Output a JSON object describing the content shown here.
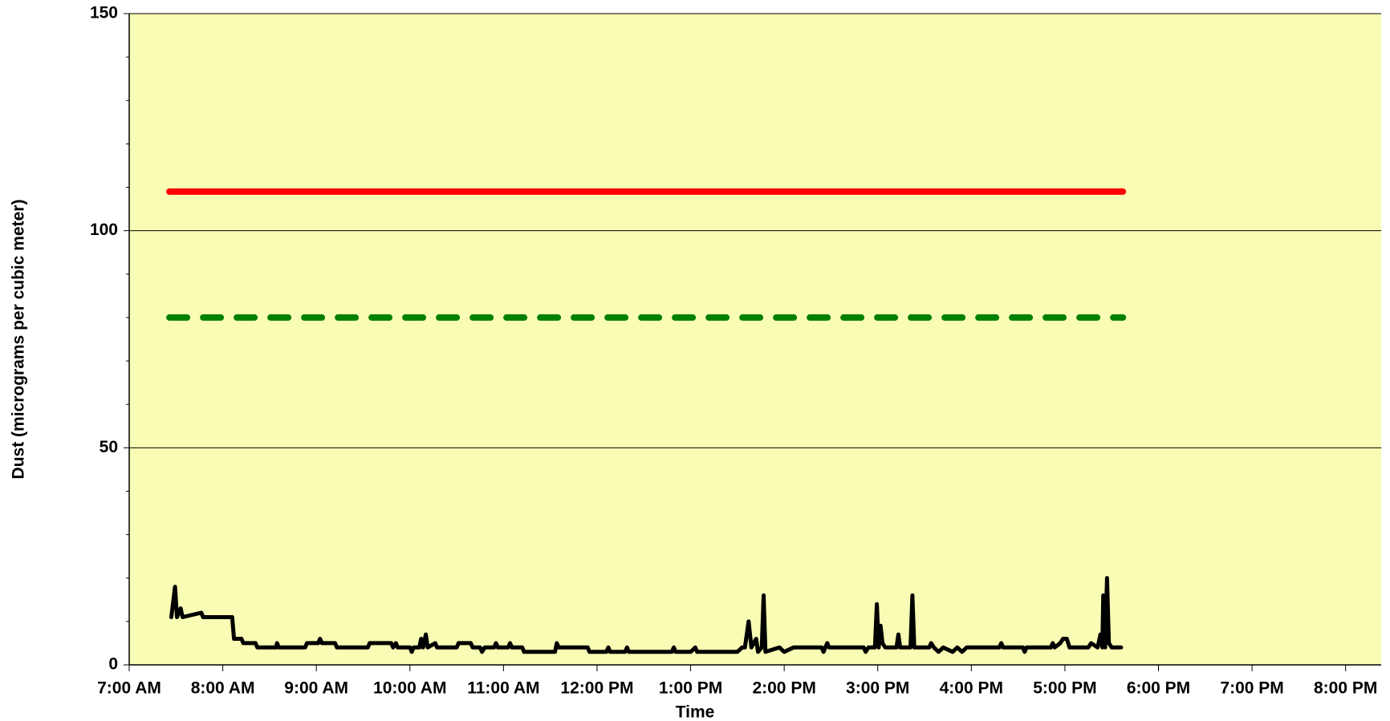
{
  "chart_data": {
    "type": "line",
    "xlabel": "Time",
    "ylabel": "Dust (micrograms per cubic meter)",
    "background": "#f9fcb4",
    "xlim": [
      7,
      20.38
    ],
    "xticks": [
      {
        "value": 7,
        "label": "7:00 AM"
      },
      {
        "value": 8,
        "label": "8:00 AM"
      },
      {
        "value": 9,
        "label": "9:00 AM"
      },
      {
        "value": 10,
        "label": "10:00 AM"
      },
      {
        "value": 11,
        "label": "11:00 AM"
      },
      {
        "value": 12,
        "label": "12:00 PM"
      },
      {
        "value": 13,
        "label": "1:00 PM"
      },
      {
        "value": 14,
        "label": "2:00 PM"
      },
      {
        "value": 15,
        "label": "3:00 PM"
      },
      {
        "value": 16,
        "label": "4:00 PM"
      },
      {
        "value": 17,
        "label": "5:00 PM"
      },
      {
        "value": 18,
        "label": "6:00 PM"
      },
      {
        "value": 19,
        "label": "7:00 PM"
      },
      {
        "value": 20,
        "label": "8:00 PM"
      }
    ],
    "ylim": [
      0,
      150
    ],
    "yticks": [
      0,
      50,
      100,
      150
    ],
    "y_minor_ticks": [
      10,
      20,
      30,
      40,
      60,
      70,
      80,
      90,
      110,
      120,
      130,
      140
    ],
    "grid": true,
    "series": [
      {
        "color": "#ff0000",
        "style": "solid",
        "width": 8,
        "x": [
          7.43,
          17.62
        ],
        "values": [
          109,
          109
        ]
      },
      {
        "color": "#008000",
        "style": "dashed",
        "width": 8,
        "x": [
          7.43,
          17.62
        ],
        "values": [
          80,
          80
        ]
      },
      {
        "color": "#000000",
        "style": "solid",
        "width": 5,
        "x": [
          7.45,
          7.49,
          7.51,
          7.55,
          7.57,
          7.77,
          7.79,
          8.1,
          8.12,
          8.2,
          8.22,
          8.35,
          8.37,
          8.57,
          8.58,
          8.6,
          8.88,
          8.9,
          9.02,
          9.04,
          9.06,
          9.2,
          9.22,
          9.55,
          9.57,
          9.8,
          9.82,
          9.85,
          9.87,
          10.0,
          10.02,
          10.04,
          10.1,
          10.12,
          10.14,
          10.17,
          10.19,
          10.27,
          10.29,
          10.5,
          10.52,
          10.65,
          10.67,
          10.75,
          10.77,
          10.8,
          10.9,
          10.92,
          10.94,
          11.05,
          11.07,
          11.09,
          11.2,
          11.22,
          11.55,
          11.57,
          11.59,
          11.9,
          11.92,
          12.1,
          12.12,
          12.14,
          12.3,
          12.32,
          12.34,
          12.8,
          12.82,
          12.84,
          13.0,
          13.05,
          13.07,
          13.5,
          13.55,
          13.58,
          13.62,
          13.65,
          13.7,
          13.72,
          13.76,
          13.78,
          13.8,
          13.95,
          14.0,
          14.1,
          14.4,
          14.42,
          14.46,
          14.48,
          14.85,
          14.87,
          14.9,
          14.97,
          14.99,
          15.01,
          15.03,
          15.05,
          15.08,
          15.2,
          15.22,
          15.24,
          15.35,
          15.37,
          15.39,
          15.55,
          15.57,
          15.6,
          15.65,
          15.7,
          15.8,
          15.85,
          15.9,
          15.95,
          16.3,
          16.32,
          16.34,
          16.55,
          16.57,
          16.59,
          16.85,
          16.87,
          16.89,
          16.95,
          16.98,
          17.02,
          17.05,
          17.25,
          17.28,
          17.35,
          17.38,
          17.4,
          17.41,
          17.43,
          17.45,
          17.47,
          17.5,
          17.6
        ],
        "values": [
          11,
          18,
          11,
          13,
          11,
          12,
          11,
          11,
          6,
          6,
          5,
          5,
          4,
          4,
          5,
          4,
          4,
          5,
          5,
          6,
          5,
          5,
          4,
          4,
          5,
          5,
          4,
          5,
          4,
          4,
          3,
          4,
          4,
          6,
          4,
          7,
          4,
          5,
          4,
          4,
          5,
          5,
          4,
          4,
          3,
          4,
          4,
          5,
          4,
          4,
          5,
          4,
          4,
          3,
          3,
          5,
          4,
          4,
          3,
          3,
          4,
          3,
          3,
          4,
          3,
          3,
          4,
          3,
          3,
          4,
          3,
          3,
          4,
          4,
          10,
          4,
          6,
          3,
          4,
          16,
          3,
          4,
          3,
          4,
          4,
          3,
          5,
          4,
          4,
          3,
          4,
          4,
          14,
          4,
          9,
          5,
          4,
          4,
          7,
          4,
          4,
          16,
          4,
          4,
          5,
          4,
          3,
          4,
          3,
          4,
          3,
          4,
          4,
          5,
          4,
          4,
          3,
          4,
          4,
          5,
          4,
          5,
          6,
          6,
          4,
          4,
          5,
          4,
          7,
          4,
          16,
          4,
          20,
          5,
          4,
          4
        ]
      }
    ]
  }
}
